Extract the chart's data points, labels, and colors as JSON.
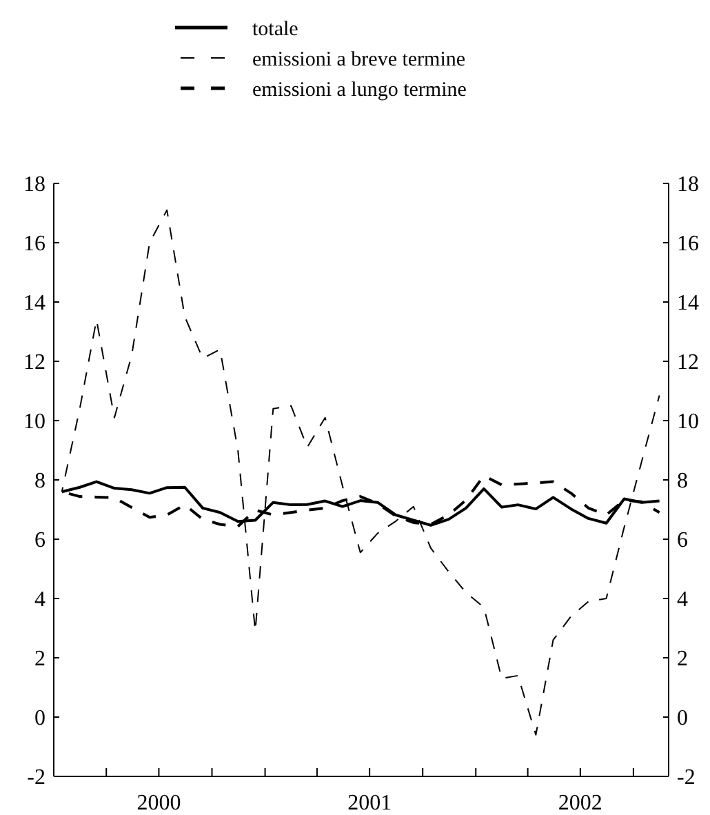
{
  "chart_data": {
    "type": "line",
    "legend": "top",
    "x": [
      "2000-01-15",
      "2000-02-15",
      "2000-03-15",
      "2000-04-15",
      "2000-05-15",
      "2000-06-15",
      "2000-07-15",
      "2000-08-15",
      "2000-09-15",
      "2000-10-15",
      "2000-11-15",
      "2000-12-15",
      "2001-01-15",
      "2001-02-15",
      "2001-03-15",
      "2001-04-15",
      "2001-05-15",
      "2001-06-15",
      "2001-07-15",
      "2001-08-15",
      "2001-09-15",
      "2001-10-15",
      "2001-11-15",
      "2001-12-15",
      "2002-01-15",
      "2002-02-15",
      "2002-03-15",
      "2002-04-15",
      "2002-05-15",
      "2002-06-15",
      "2002-07-15",
      "2002-08-15",
      "2002-09-15",
      "2002-10-15",
      "2002-11-15"
    ],
    "series": [
      {
        "name": "totale",
        "color": "#000000",
        "line_style": "solid",
        "values": [
          7.6,
          7.75,
          7.94,
          7.72,
          7.67,
          7.55,
          7.74,
          7.75,
          7.05,
          6.9,
          6.6,
          6.64,
          7.24,
          7.16,
          7.17,
          7.29,
          7.1,
          7.3,
          7.24,
          6.82,
          6.64,
          6.47,
          6.67,
          7.05,
          7.7,
          7.08,
          7.16,
          7.02,
          7.41,
          7.02,
          6.7,
          6.54,
          7.36,
          7.24,
          7.29
        ]
      },
      {
        "name": "emissioni a breve termine",
        "color": "#000000",
        "line_style": "dashed",
        "values": [
          7.6,
          10.4,
          13.4,
          10.1,
          12.2,
          16.0,
          17.1,
          13.5,
          12.1,
          12.4,
          9.0,
          2.9,
          10.4,
          10.5,
          9.1,
          10.1,
          7.8,
          5.55,
          6.2,
          6.6,
          7.1,
          5.7,
          4.9,
          4.2,
          3.7,
          1.3,
          1.4,
          -0.6,
          2.6,
          3.4,
          3.9,
          4.0,
          6.4,
          8.6,
          10.85
        ]
      },
      {
        "name": "emissioni a lungo termine",
        "color": "#000000",
        "line_style": "dashed",
        "values": [
          7.6,
          7.44,
          7.42,
          7.4,
          7.07,
          6.74,
          6.82,
          7.16,
          6.67,
          6.5,
          6.43,
          6.98,
          6.82,
          6.9,
          6.98,
          7.05,
          7.3,
          7.44,
          7.2,
          6.79,
          6.56,
          6.5,
          6.82,
          7.32,
          8.14,
          7.83,
          7.86,
          7.9,
          7.94,
          7.55,
          7.05,
          6.82,
          7.32,
          7.26,
          6.9
        ]
      }
    ],
    "xlim": [
      "2000-01-01",
      "2002-12-01"
    ],
    "xticks": [
      {
        "value": "2000-04-01",
        "label": null
      },
      {
        "value": "2000-07-01",
        "label": "2000"
      },
      {
        "value": "2000-10-01",
        "label": null
      },
      {
        "value": "2001-01-01",
        "label": null
      },
      {
        "value": "2001-04-01",
        "label": null
      },
      {
        "value": "2001-07-01",
        "label": "2001"
      },
      {
        "value": "2001-10-01",
        "label": null
      },
      {
        "value": "2002-01-01",
        "label": null
      },
      {
        "value": "2002-04-01",
        "label": null
      },
      {
        "value": "2002-07-01",
        "label": "2002"
      },
      {
        "value": "2002-10-01",
        "label": null
      }
    ],
    "ylim": [
      -2,
      18
    ],
    "yticks": [
      -2,
      0,
      2,
      4,
      6,
      8,
      10,
      12,
      14,
      16,
      18
    ],
    "y2lim": [
      -2,
      18
    ],
    "y2ticks": [
      -2,
      0,
      2,
      4,
      6,
      8,
      10,
      12,
      14,
      16,
      18
    ],
    "grid": false
  }
}
